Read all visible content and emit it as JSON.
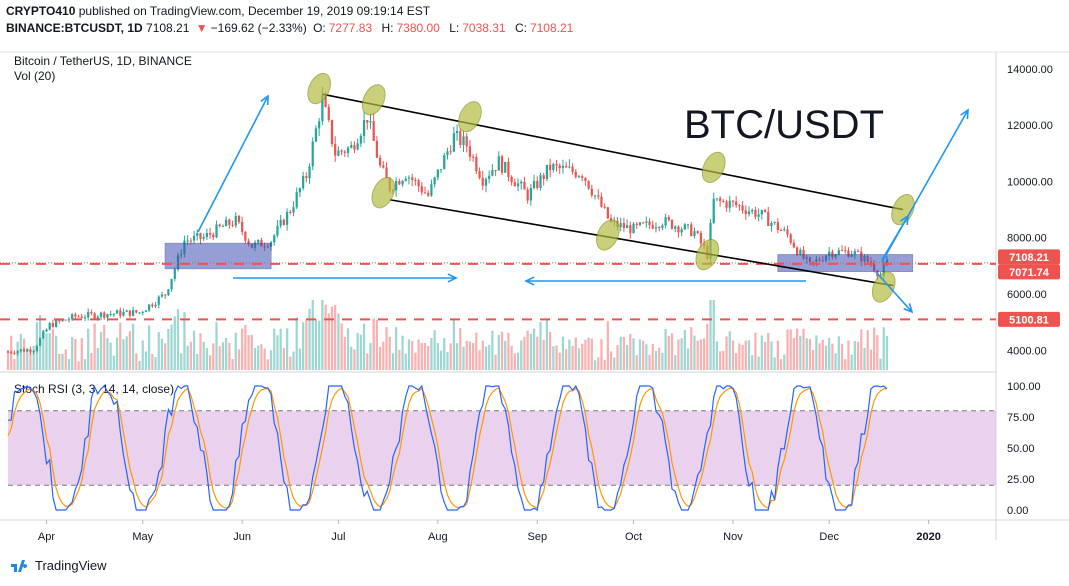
{
  "header": {
    "publisher": "CRYPTO410",
    "published_text": "published on TradingView.com, December 19, 2019 09:19:14 EST",
    "symbol": "BINANCE:BTCUSDT, 1D",
    "last": "7108.21",
    "change": "−169.62 (−2.33%)",
    "open_label": "O:",
    "open": "7277.83",
    "high_label": "H:",
    "high": "7380.00",
    "low_label": "L:",
    "low": "7038.31",
    "close_label": "C:",
    "close": "7108.21"
  },
  "chart_data": {
    "type": "candlestick",
    "title": "Bitcoin / TetherUS, 1D, BINANCE",
    "subtitle": "Vol (20)",
    "annotation_text": "BTC/USDT",
    "y_ticks": [
      "14000.00",
      "12000.00",
      "10000.00",
      "8000.00",
      "6000.00",
      "4000.00"
    ],
    "y_tick_values": [
      14000,
      12000,
      10000,
      8000,
      6000,
      4000
    ],
    "ylim": [
      3300,
      14600
    ],
    "x_ticks": [
      "Apr",
      "May",
      "Jun",
      "Jul",
      "Aug",
      "Sep",
      "Oct",
      "Nov",
      "Dec",
      "2020"
    ],
    "x_tick_dates": [
      "2019-04-01",
      "2019-05-01",
      "2019-06-01",
      "2019-07-01",
      "2019-08-01",
      "2019-09-01",
      "2019-10-01",
      "2019-11-01",
      "2019-12-01",
      "2020-01-01"
    ],
    "price_labels": [
      {
        "value": 7108.21,
        "text": "7108.21",
        "color": "#ef5350"
      },
      {
        "value": 7071.74,
        "text": "7071.74",
        "color": "#ef5350"
      },
      {
        "value": 5100.81,
        "text": "5100.81",
        "color": "#ef5350"
      }
    ],
    "horizontal_lines": [
      {
        "value": 7071.74,
        "color": "#ef5350",
        "style": "dashed"
      },
      {
        "value": 5100.81,
        "color": "#ef5350",
        "style": "dashed"
      }
    ],
    "trend_lines": [
      {
        "from": [
          "2019-06-26",
          13100
        ],
        "to": [
          "2019-12-24",
          9000
        ]
      },
      {
        "from": [
          "2019-07-17",
          9350
        ],
        "to": [
          "2019-12-21",
          6300
        ]
      }
    ],
    "close_series": {
      "dates": [
        "2019-03-20",
        "2019-03-28",
        "2019-04-02",
        "2019-04-10",
        "2019-04-20",
        "2019-04-30",
        "2019-05-08",
        "2019-05-11",
        "2019-05-14",
        "2019-05-20",
        "2019-05-26",
        "2019-05-30",
        "2019-06-04",
        "2019-06-10",
        "2019-06-16",
        "2019-06-21",
        "2019-06-26",
        "2019-06-30",
        "2019-07-05",
        "2019-07-10",
        "2019-07-14",
        "2019-07-17",
        "2019-07-22",
        "2019-07-29",
        "2019-08-06",
        "2019-08-10",
        "2019-08-15",
        "2019-08-20",
        "2019-08-29",
        "2019-09-05",
        "2019-09-15",
        "2019-09-24",
        "2019-10-01",
        "2019-10-10",
        "2019-10-20",
        "2019-10-24",
        "2019-10-26",
        "2019-11-01",
        "2019-11-10",
        "2019-11-18",
        "2019-11-22",
        "2019-11-25",
        "2019-12-01",
        "2019-12-08",
        "2019-12-14",
        "2019-12-17",
        "2019-12-19"
      ],
      "values": [
        3950,
        4050,
        4900,
        5200,
        5300,
        5350,
        6000,
        6900,
        7900,
        8000,
        8400,
        8600,
        7700,
        7900,
        9000,
        10200,
        12900,
        11000,
        11200,
        12300,
        10500,
        9800,
        10300,
        9500,
        11600,
        11300,
        10100,
        10700,
        9500,
        10500,
        10300,
        8500,
        8300,
        8600,
        8200,
        7400,
        9300,
        9200,
        8800,
        8100,
        7400,
        7000,
        7500,
        7500,
        7100,
        6650,
        7108.21
      ]
    },
    "volume_note": "Vol (20) histogram",
    "stoch_rsi": {
      "title": "Stoch RSI (3, 3, 14, 14, close)",
      "y_ticks": [
        "100.00",
        "75.00",
        "50.00",
        "25.00",
        "0.00"
      ],
      "y_tick_values": [
        100,
        75,
        50,
        25,
        0
      ],
      "upper_band": 80,
      "lower_band": 20,
      "k_color": "#2962ff",
      "d_color": "#ff9800"
    }
  },
  "colors": {
    "up": "#26a69a",
    "down": "#ef5350",
    "trend": "#000000",
    "arrow": "#2196f3",
    "box_fill": "#3f51b5",
    "ellipse": "#b5bd41",
    "band_fill": "#e1bee7"
  },
  "footer": {
    "brand": "TradingView"
  }
}
